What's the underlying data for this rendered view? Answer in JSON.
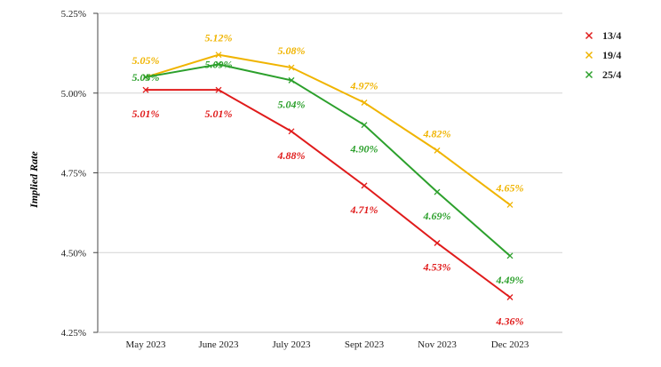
{
  "chart_data": {
    "type": "line",
    "title": "",
    "xlabel": "",
    "ylabel": "Implied Rate",
    "categories": [
      "May 2023",
      "June 2023",
      "July 2023",
      "Sept 2023",
      "Nov 2023",
      "Dec 2023"
    ],
    "ylim": [
      4.25,
      5.25
    ],
    "yticks": [
      4.25,
      4.5,
      4.75,
      5.0,
      5.25
    ],
    "ytick_labels": [
      "4.25%",
      "4.50%",
      "4.75%",
      "5.00%",
      "5.25%"
    ],
    "grid": "horizontal",
    "legend_position": "top-right",
    "series": [
      {
        "name": "13/4",
        "color": "#e01b1b",
        "values": [
          5.01,
          5.01,
          4.88,
          4.71,
          4.53,
          4.36
        ],
        "labels": [
          "5.01%",
          "5.01%",
          "4.88%",
          "4.71%",
          "4.53%",
          "4.36%"
        ],
        "label_side": [
          "below",
          "below",
          "below",
          "below",
          "below",
          "below"
        ]
      },
      {
        "name": "19/4",
        "color": "#f0b400",
        "values": [
          5.05,
          5.12,
          5.08,
          4.97,
          4.82,
          4.65
        ],
        "labels": [
          "5.05%",
          "5.12%",
          "5.08%",
          "4.97%",
          "4.82%",
          "4.65%"
        ],
        "label_side": [
          "above",
          "above",
          "above",
          "above",
          "above",
          "above"
        ]
      },
      {
        "name": "25/4",
        "color": "#2ca02c",
        "values": [
          5.05,
          5.09,
          5.04,
          4.9,
          4.69,
          4.49
        ],
        "labels": [
          "5.05%",
          "5.09%",
          "5.04%",
          "4.90%",
          "4.69%",
          "4.49%"
        ],
        "label_side": [
          "at",
          "at",
          "below",
          "below",
          "below",
          "below"
        ]
      }
    ]
  }
}
